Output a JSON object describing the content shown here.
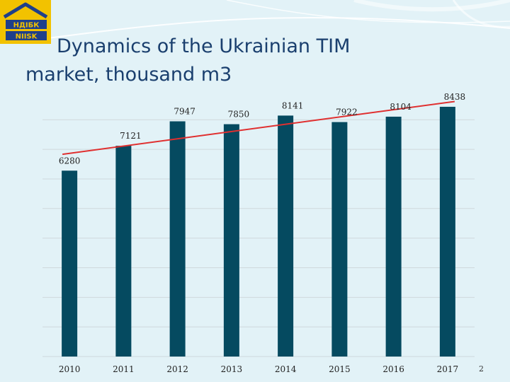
{
  "slide": {
    "title": "Dynamics of the Ukrainian TIM market, thousand m3",
    "page_number": "2"
  },
  "logo": {
    "line1": "НДІБК",
    "line2": "NIISK"
  },
  "colors": {
    "bar": "#054a60",
    "trend": "#e03030",
    "background": "#e2f2f7",
    "title": "#1a3f6e",
    "logo_blue": "#1f3f8a",
    "logo_yellow": "#f2c200"
  },
  "chart_data": {
    "type": "bar",
    "title": "",
    "xlabel": "",
    "ylabel": "",
    "categories": [
      "2010",
      "2011",
      "2012",
      "2013",
      "2014",
      "2015",
      "2016",
      "2017"
    ],
    "series": [
      {
        "values": [
          6280,
          7121,
          7947,
          7850,
          8141,
          7922,
          8104,
          8438
        ]
      }
    ],
    "data_labels": [
      "6280",
      "7121",
      "7947",
      "7850",
      "8141",
      "7922",
      "8104",
      "8438"
    ],
    "trendline": {
      "type": "linear",
      "shown": true
    },
    "ylim": [
      0,
      8700
    ],
    "grid": true,
    "legend": "none"
  }
}
